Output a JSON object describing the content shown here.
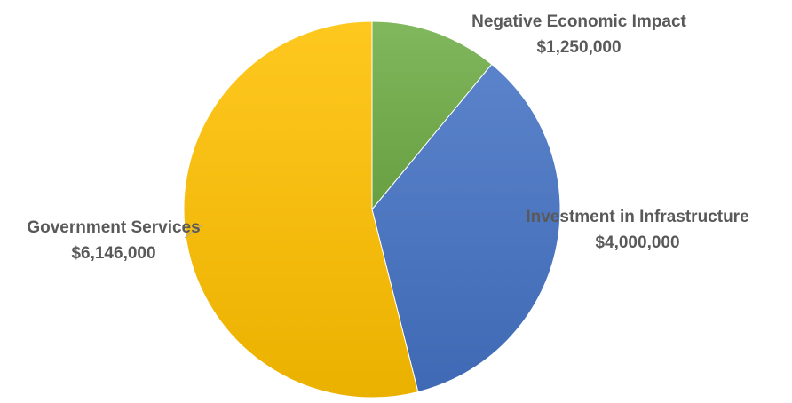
{
  "chart_data": {
    "type": "pie",
    "title": "",
    "start_angle_deg": 0,
    "direction": "clockwise",
    "slices": [
      {
        "name": "Negative Economic Impact",
        "value": 1250000,
        "value_label": "$1,250,000",
        "color": "#70ad47"
      },
      {
        "name": "Investment in Infrastructure",
        "value": 4000000,
        "value_label": "$4,000,000",
        "color": "#4472c4"
      },
      {
        "name": "Government Services",
        "value": 6146000,
        "value_label": "$6,146,000",
        "color": "#ffc000"
      }
    ],
    "legend": "none"
  }
}
